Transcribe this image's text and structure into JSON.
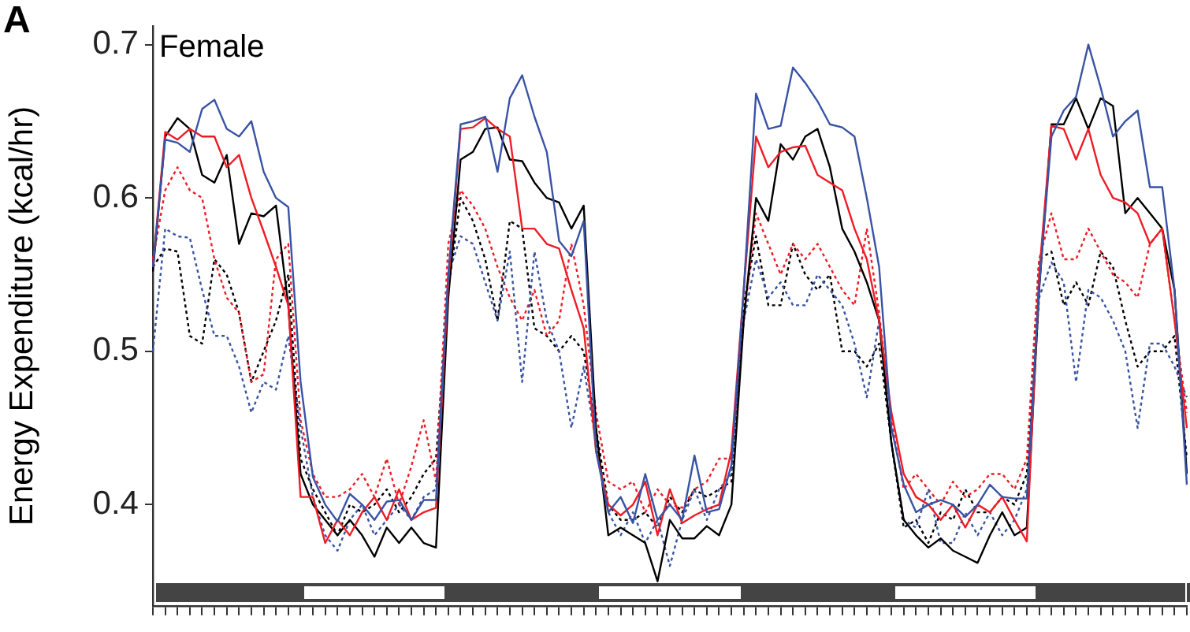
{
  "chart_data": {
    "type": "line",
    "title": "Female",
    "ylabel": "Energy Expenditure (kcal/hr)",
    "annotations": [
      "A"
    ],
    "categories": [
      null,
      null,
      null,
      null,
      null,
      null,
      null,
      null,
      null,
      null,
      null,
      null,
      null,
      null,
      null,
      null,
      null,
      null,
      null,
      null,
      null,
      null,
      null,
      null,
      null,
      null,
      null,
      null,
      null,
      null,
      null,
      null,
      null,
      null,
      null,
      null,
      null,
      null,
      null,
      null,
      null,
      null,
      null,
      null,
      null,
      null,
      null,
      null,
      null,
      null,
      null,
      null,
      null,
      null,
      null,
      null,
      null,
      null,
      null,
      null,
      null,
      null,
      null,
      null,
      null,
      null,
      null,
      null,
      null,
      null,
      null,
      null,
      null,
      null,
      null,
      null,
      null,
      null,
      null,
      null,
      null,
      null,
      null,
      null,
      null
    ],
    "ylim": [
      0.334,
      0.712
    ],
    "yticks": [
      0.4,
      0.5,
      0.6,
      0.7
    ],
    "grid": false,
    "legend": false,
    "tick_labels": "y",
    "marker": "none",
    "series": [
      {
        "color": "#3953a4",
        "line_style": "solid",
        "values": [
          0.555,
          0.638,
          0.636,
          0.63,
          0.658,
          0.664,
          0.645,
          0.64,
          0.65,
          0.617,
          0.6,
          0.594,
          0.48,
          0.418,
          0.4,
          0.389,
          0.407,
          0.4,
          0.39,
          0.402,
          0.403,
          0.39,
          0.403,
          0.403,
          0.55,
          0.648,
          0.65,
          0.653,
          0.617,
          0.665,
          0.68,
          0.653,
          0.63,
          0.572,
          0.562,
          0.585,
          0.435,
          0.395,
          0.405,
          0.388,
          0.42,
          0.39,
          0.4,
          0.39,
          0.432,
          0.395,
          0.397,
          0.426,
          0.54,
          0.668,
          0.645,
          0.647,
          0.685,
          0.675,
          0.663,
          0.648,
          0.646,
          0.64,
          0.6,
          0.555,
          0.45,
          0.413,
          0.395,
          0.4,
          0.403,
          0.4,
          0.392,
          0.4,
          0.413,
          0.405,
          0.404,
          0.404,
          0.542,
          0.64,
          0.657,
          0.666,
          0.7,
          0.672,
          0.64,
          0.65,
          0.657,
          0.607,
          0.607,
          0.54,
          0.413
        ]
      },
      {
        "color": "#ee1c25",
        "line_style": "solid",
        "values": [
          0.555,
          0.643,
          0.638,
          0.645,
          0.64,
          0.64,
          0.62,
          0.628,
          0.6,
          0.578,
          0.555,
          0.53,
          0.405,
          0.405,
          0.375,
          0.39,
          0.38,
          0.395,
          0.405,
          0.39,
          0.41,
          0.39,
          0.395,
          0.398,
          0.545,
          0.645,
          0.646,
          0.652,
          0.645,
          0.64,
          0.58,
          0.58,
          0.57,
          0.567,
          0.54,
          0.515,
          0.435,
          0.4,
          0.393,
          0.4,
          0.415,
          0.38,
          0.41,
          0.388,
          0.393,
          0.397,
          0.4,
          0.435,
          0.54,
          0.64,
          0.62,
          0.63,
          0.633,
          0.634,
          0.615,
          0.61,
          0.605,
          0.58,
          0.56,
          0.52,
          0.46,
          0.42,
          0.405,
          0.4,
          0.39,
          0.4,
          0.385,
          0.4,
          0.395,
          0.405,
          0.39,
          0.376,
          0.55,
          0.647,
          0.645,
          0.625,
          0.645,
          0.615,
          0.6,
          0.597,
          0.59,
          0.57,
          0.58,
          0.52,
          0.45
        ]
      },
      {
        "color": "#000000",
        "line_style": "solid",
        "values": [
          0.552,
          0.64,
          0.652,
          0.645,
          0.615,
          0.61,
          0.628,
          0.57,
          0.59,
          0.588,
          0.595,
          0.53,
          0.42,
          0.4,
          0.39,
          0.38,
          0.39,
          0.38,
          0.366,
          0.385,
          0.375,
          0.385,
          0.375,
          0.372,
          0.535,
          0.625,
          0.63,
          0.645,
          0.646,
          0.625,
          0.624,
          0.61,
          0.6,
          0.597,
          0.58,
          0.595,
          0.45,
          0.38,
          0.385,
          0.38,
          0.375,
          0.35,
          0.39,
          0.378,
          0.378,
          0.386,
          0.38,
          0.4,
          0.52,
          0.6,
          0.585,
          0.635,
          0.625,
          0.64,
          0.645,
          0.62,
          0.58,
          0.565,
          0.545,
          0.52,
          0.44,
          0.39,
          0.38,
          0.372,
          0.378,
          0.37,
          0.366,
          0.362,
          0.38,
          0.395,
          0.38,
          0.385,
          0.54,
          0.648,
          0.648,
          0.665,
          0.645,
          0.665,
          0.66,
          0.59,
          0.6,
          0.59,
          0.58,
          0.54,
          0.42
        ]
      },
      {
        "color": "#3953a4",
        "line_style": "dotted",
        "values": [
          0.5,
          0.58,
          0.575,
          0.574,
          0.54,
          0.51,
          0.51,
          0.49,
          0.46,
          0.48,
          0.475,
          0.51,
          0.45,
          0.405,
          0.38,
          0.37,
          0.39,
          0.4,
          0.38,
          0.39,
          0.4,
          0.39,
          0.405,
          0.41,
          0.55,
          0.575,
          0.57,
          0.545,
          0.52,
          0.565,
          0.48,
          0.565,
          0.52,
          0.5,
          0.45,
          0.49,
          0.44,
          0.395,
          0.38,
          0.395,
          0.375,
          0.39,
          0.36,
          0.39,
          0.41,
          0.39,
          0.41,
          0.42,
          0.52,
          0.56,
          0.535,
          0.545,
          0.53,
          0.53,
          0.55,
          0.54,
          0.53,
          0.505,
          0.47,
          0.52,
          0.44,
          0.39,
          0.385,
          0.41,
          0.375,
          0.375,
          0.395,
          0.38,
          0.395,
          0.38,
          0.39,
          0.41,
          0.535,
          0.558,
          0.545,
          0.48,
          0.54,
          0.535,
          0.52,
          0.5,
          0.45,
          0.505,
          0.505,
          0.49,
          0.47
        ]
      },
      {
        "color": "#ee1c25",
        "line_style": "dotted",
        "values": [
          0.56,
          0.605,
          0.62,
          0.605,
          0.6,
          0.56,
          0.535,
          0.525,
          0.48,
          0.485,
          0.56,
          0.57,
          0.455,
          0.42,
          0.405,
          0.405,
          0.41,
          0.42,
          0.405,
          0.43,
          0.4,
          0.425,
          0.455,
          0.415,
          0.57,
          0.605,
          0.595,
          0.58,
          0.555,
          0.535,
          0.52,
          0.54,
          0.51,
          0.52,
          0.57,
          0.53,
          0.46,
          0.415,
          0.41,
          0.415,
          0.395,
          0.41,
          0.4,
          0.398,
          0.41,
          0.415,
          0.43,
          0.43,
          0.52,
          0.59,
          0.57,
          0.55,
          0.57,
          0.56,
          0.57,
          0.555,
          0.54,
          0.53,
          0.58,
          0.525,
          0.455,
          0.41,
          0.42,
          0.41,
          0.4,
          0.415,
          0.405,
          0.41,
          0.42,
          0.42,
          0.41,
          0.43,
          0.56,
          0.59,
          0.56,
          0.56,
          0.58,
          0.565,
          0.55,
          0.545,
          0.535,
          0.57,
          0.58,
          0.52,
          0.46
        ]
      },
      {
        "color": "#000000",
        "line_style": "dotted",
        "values": [
          0.555,
          0.567,
          0.565,
          0.51,
          0.505,
          0.56,
          0.55,
          0.525,
          0.48,
          0.5,
          0.52,
          0.55,
          0.43,
          0.41,
          0.395,
          0.38,
          0.4,
          0.395,
          0.4,
          0.41,
          0.395,
          0.405,
          0.42,
          0.43,
          0.54,
          0.6,
          0.585,
          0.56,
          0.52,
          0.585,
          0.58,
          0.515,
          0.51,
          0.5,
          0.51,
          0.5,
          0.45,
          0.4,
          0.39,
          0.39,
          0.395,
          0.385,
          0.405,
          0.395,
          0.41,
          0.405,
          0.41,
          0.415,
          0.53,
          0.575,
          0.53,
          0.53,
          0.57,
          0.55,
          0.54,
          0.55,
          0.5,
          0.5,
          0.49,
          0.505,
          0.44,
          0.385,
          0.39,
          0.375,
          0.395,
          0.39,
          0.41,
          0.395,
          0.395,
          0.405,
          0.4,
          0.42,
          0.56,
          0.565,
          0.53,
          0.545,
          0.53,
          0.565,
          0.555,
          0.52,
          0.49,
          0.5,
          0.5,
          0.51,
          0.43
        ]
      }
    ]
  }
}
